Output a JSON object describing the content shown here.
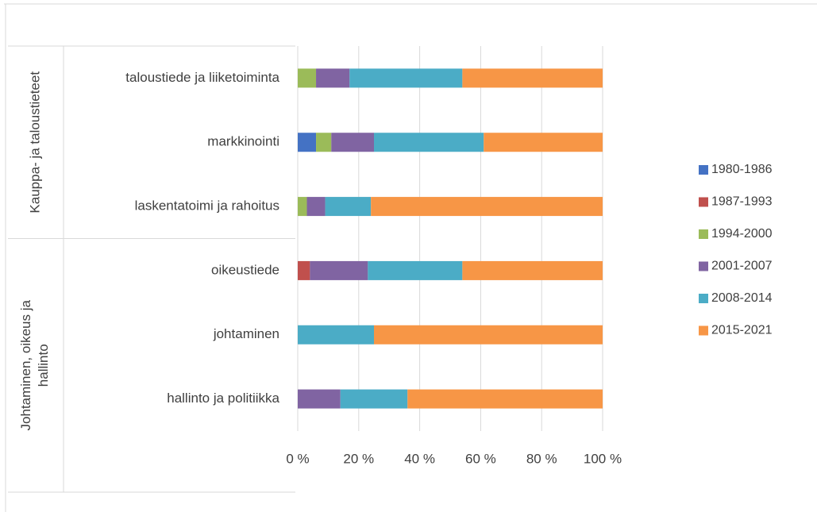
{
  "chart_data": {
    "type": "stacked_bar_horizontal_percent",
    "groups": [
      {
        "name": "Kauppa- ja taloustieteet",
        "categories": [
          "taloustiede ja liiketoiminta",
          "markkinointi",
          "laskentatoimi ja rahoitus"
        ]
      },
      {
        "name": "Johtaminen, oikeus ja hallinto",
        "categories": [
          "oikeustiede",
          "johtaminen",
          "hallinto ja politiikka"
        ]
      }
    ],
    "series": [
      {
        "name": "1980-1986",
        "color": "#4472c4",
        "values": [
          0,
          6,
          0,
          0,
          0,
          0
        ]
      },
      {
        "name": "1987-1993",
        "color": "#c0504d",
        "values": [
          0,
          0,
          0,
          4,
          0,
          0
        ]
      },
      {
        "name": "1994-2000",
        "color": "#9bbb59",
        "values": [
          6,
          5,
          3,
          0,
          0,
          0
        ]
      },
      {
        "name": "2001-2007",
        "color": "#8064a2",
        "values": [
          11,
          14,
          6,
          19,
          0,
          14
        ]
      },
      {
        "name": "2008-2014",
        "color": "#4bacc6",
        "values": [
          37,
          36,
          15,
          31,
          25,
          22
        ]
      },
      {
        "name": "2015-2021",
        "color": "#f79646",
        "values": [
          46,
          39,
          76,
          46,
          75,
          64
        ]
      }
    ],
    "xlim": [
      0,
      100
    ],
    "xticks": [
      {
        "value": 0,
        "label": "0 %"
      },
      {
        "value": 20,
        "label": "20 %"
      },
      {
        "value": 40,
        "label": "40 %"
      },
      {
        "value": 60,
        "label": "60 %"
      },
      {
        "value": 80,
        "label": "80 %"
      },
      {
        "value": 100,
        "label": "100 %"
      }
    ],
    "grid": true,
    "legend": "right"
  }
}
